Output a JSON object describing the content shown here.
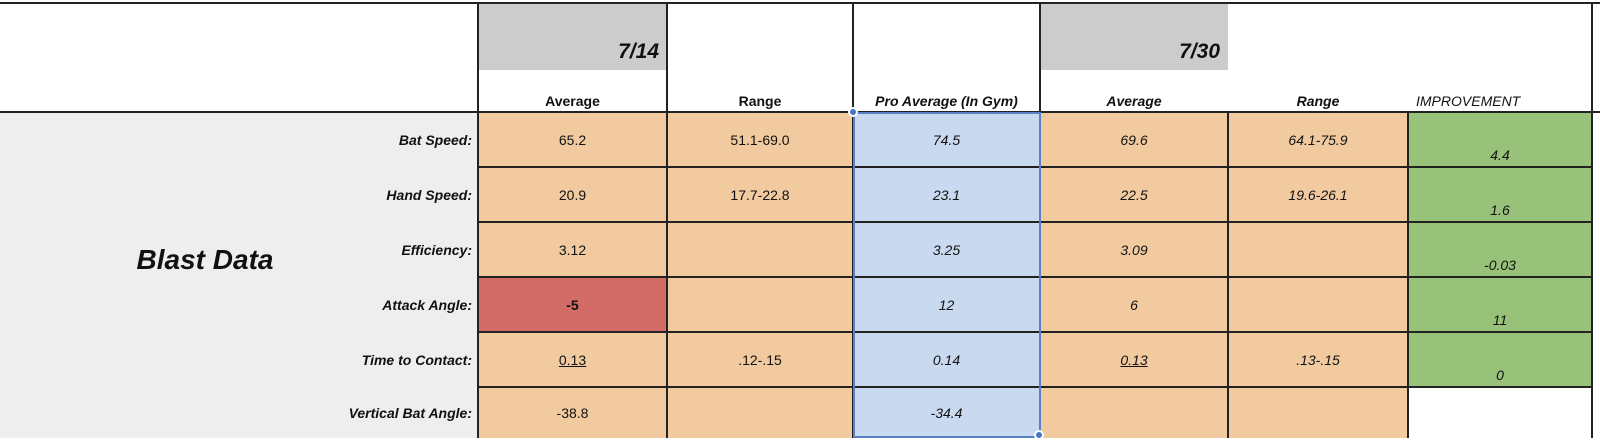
{
  "header": {
    "date1": "7/14",
    "date2": "7/30",
    "columns": {
      "avg1": "Average",
      "range1": "Range",
      "pro": "Pro Average (In Gym)",
      "avg2": "Average",
      "range2": "Range",
      "improvement": "IMPROVEMENT"
    }
  },
  "section_title": "Blast Data",
  "rows": [
    {
      "label": "Bat Speed:",
      "avg1": "65.2",
      "range1": "51.1-69.0",
      "pro": "74.5",
      "avg2": "69.6",
      "range2": "64.1-75.9",
      "improvement": "4.4"
    },
    {
      "label": "Hand Speed:",
      "avg1": "20.9",
      "range1": "17.7-22.8",
      "pro": "23.1",
      "avg2": "22.5",
      "range2": "19.6-26.1",
      "improvement": "1.6"
    },
    {
      "label": "Efficiency:",
      "avg1": "3.12",
      "range1": "",
      "pro": "3.25",
      "avg2": "3.09",
      "range2": "",
      "improvement": "-0.03"
    },
    {
      "label": "Attack Angle:",
      "avg1": "-5",
      "range1": "",
      "pro": "12",
      "avg2": "6",
      "range2": "",
      "improvement": "11"
    },
    {
      "label": "Time to Contact:",
      "avg1": "0.13",
      "range1": ".12-.15",
      "pro": "0.14",
      "avg2": "0.13",
      "range2": ".13-.15",
      "improvement": "0"
    },
    {
      "label": "Vertical Bat Angle:",
      "avg1": "-38.8",
      "range1": "",
      "pro": "-34.4",
      "avg2": "",
      "range2": "",
      "improvement": ""
    }
  ],
  "colors": {
    "orange": "#f2caa0",
    "blue": "#c9d9ef",
    "green": "#98c17a",
    "red": "#d36b66",
    "gray": "#cccccc"
  }
}
